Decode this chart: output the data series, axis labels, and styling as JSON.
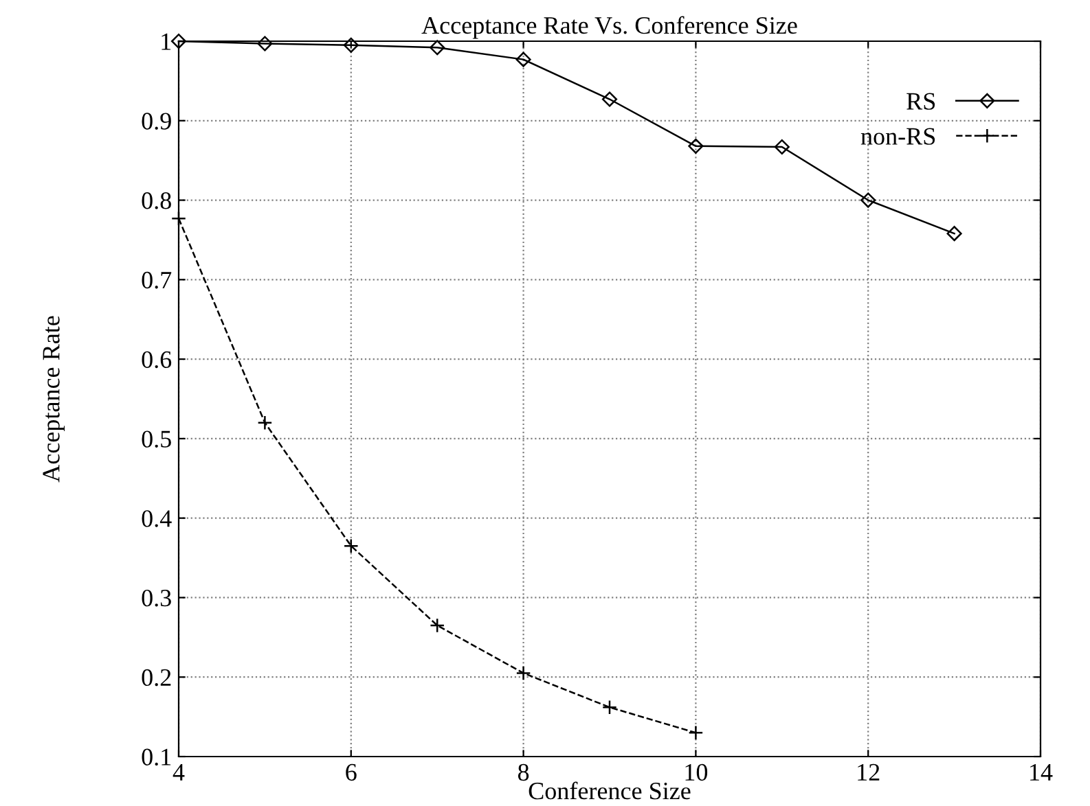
{
  "chart_data": {
    "type": "line",
    "title": "Acceptance Rate Vs. Conference Size",
    "xlabel": "Conference Size",
    "ylabel": "Acceptance Rate",
    "x": [
      4,
      5,
      6,
      7,
      8,
      9,
      10,
      11,
      12,
      13
    ],
    "series": [
      {
        "name": "RS",
        "color": "#000000",
        "marker": "diamond",
        "line_style": "solid",
        "values": [
          1.0,
          0.997,
          0.995,
          0.992,
          0.977,
          0.927,
          0.868,
          0.867,
          0.8,
          0.758
        ]
      },
      {
        "name": "non-RS",
        "color": "#000000",
        "marker": "cross",
        "line_style": "dashed",
        "x": [
          4,
          5,
          6,
          7,
          8,
          9,
          10
        ],
        "values": [
          0.777,
          0.52,
          0.365,
          0.265,
          0.205,
          0.162,
          0.13
        ]
      }
    ],
    "xlim": [
      4,
      14
    ],
    "xticks": [
      4,
      6,
      8,
      10,
      12,
      14
    ],
    "ylim": [
      0.1,
      1
    ],
    "yticks": [
      0.1,
      0.2,
      0.3,
      0.4,
      0.5,
      0.6,
      0.7,
      0.8,
      0.9,
      1
    ],
    "grid": true,
    "legend": "top right"
  }
}
